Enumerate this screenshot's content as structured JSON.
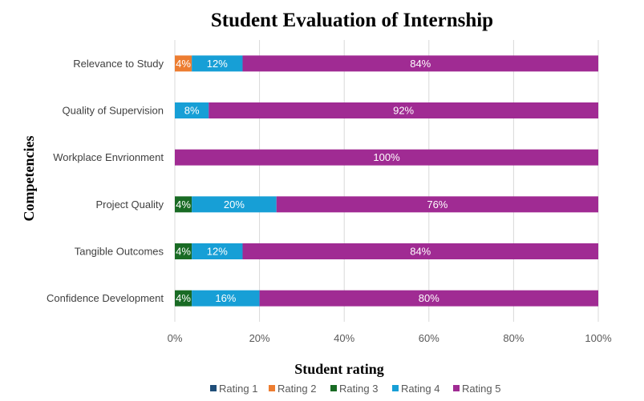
{
  "chart_data": {
    "type": "bar",
    "orientation": "horizontal",
    "stacked": "percent",
    "title": "Student Evaluation of Internship",
    "xlabel": "Student rating",
    "ylabel": "Competencies",
    "xlim": [
      0,
      100
    ],
    "x_ticks": [
      "0%",
      "20%",
      "40%",
      "60%",
      "80%",
      "100%"
    ],
    "grid": true,
    "legend_position": "bottom",
    "categories": [
      "Relevance to Study",
      "Quality of Supervision",
      "Workplace Envrionment",
      "Project Quality",
      "Tangible Outcomes",
      "Confidence Development"
    ],
    "series": [
      {
        "name": "Rating 1",
        "color": "#1f4e79",
        "values": [
          0,
          0,
          0,
          0,
          0,
          0
        ],
        "labels": [
          "",
          "",
          "",
          "",
          "",
          ""
        ]
      },
      {
        "name": "Rating 2",
        "color": "#ed7d31",
        "values": [
          4,
          0,
          0,
          0,
          0,
          0
        ],
        "labels": [
          "4%",
          "",
          "",
          "",
          "",
          ""
        ]
      },
      {
        "name": "Rating 3",
        "color": "#196b24",
        "values": [
          0,
          0,
          0,
          4,
          4,
          4
        ],
        "labels": [
          "",
          "",
          "",
          "4%",
          "4%",
          "4%"
        ]
      },
      {
        "name": "Rating 4",
        "color": "#179fd6",
        "values": [
          12,
          8,
          0,
          20,
          12,
          16
        ],
        "labels": [
          "12%",
          "8%",
          "",
          "20%",
          "12%",
          "16%"
        ]
      },
      {
        "name": "Rating 5",
        "color": "#a02b93",
        "values": [
          84,
          92,
          100,
          76,
          84,
          80
        ],
        "labels": [
          "84%",
          "92%",
          "100%",
          "76%",
          "84%",
          "80%"
        ]
      }
    ]
  }
}
